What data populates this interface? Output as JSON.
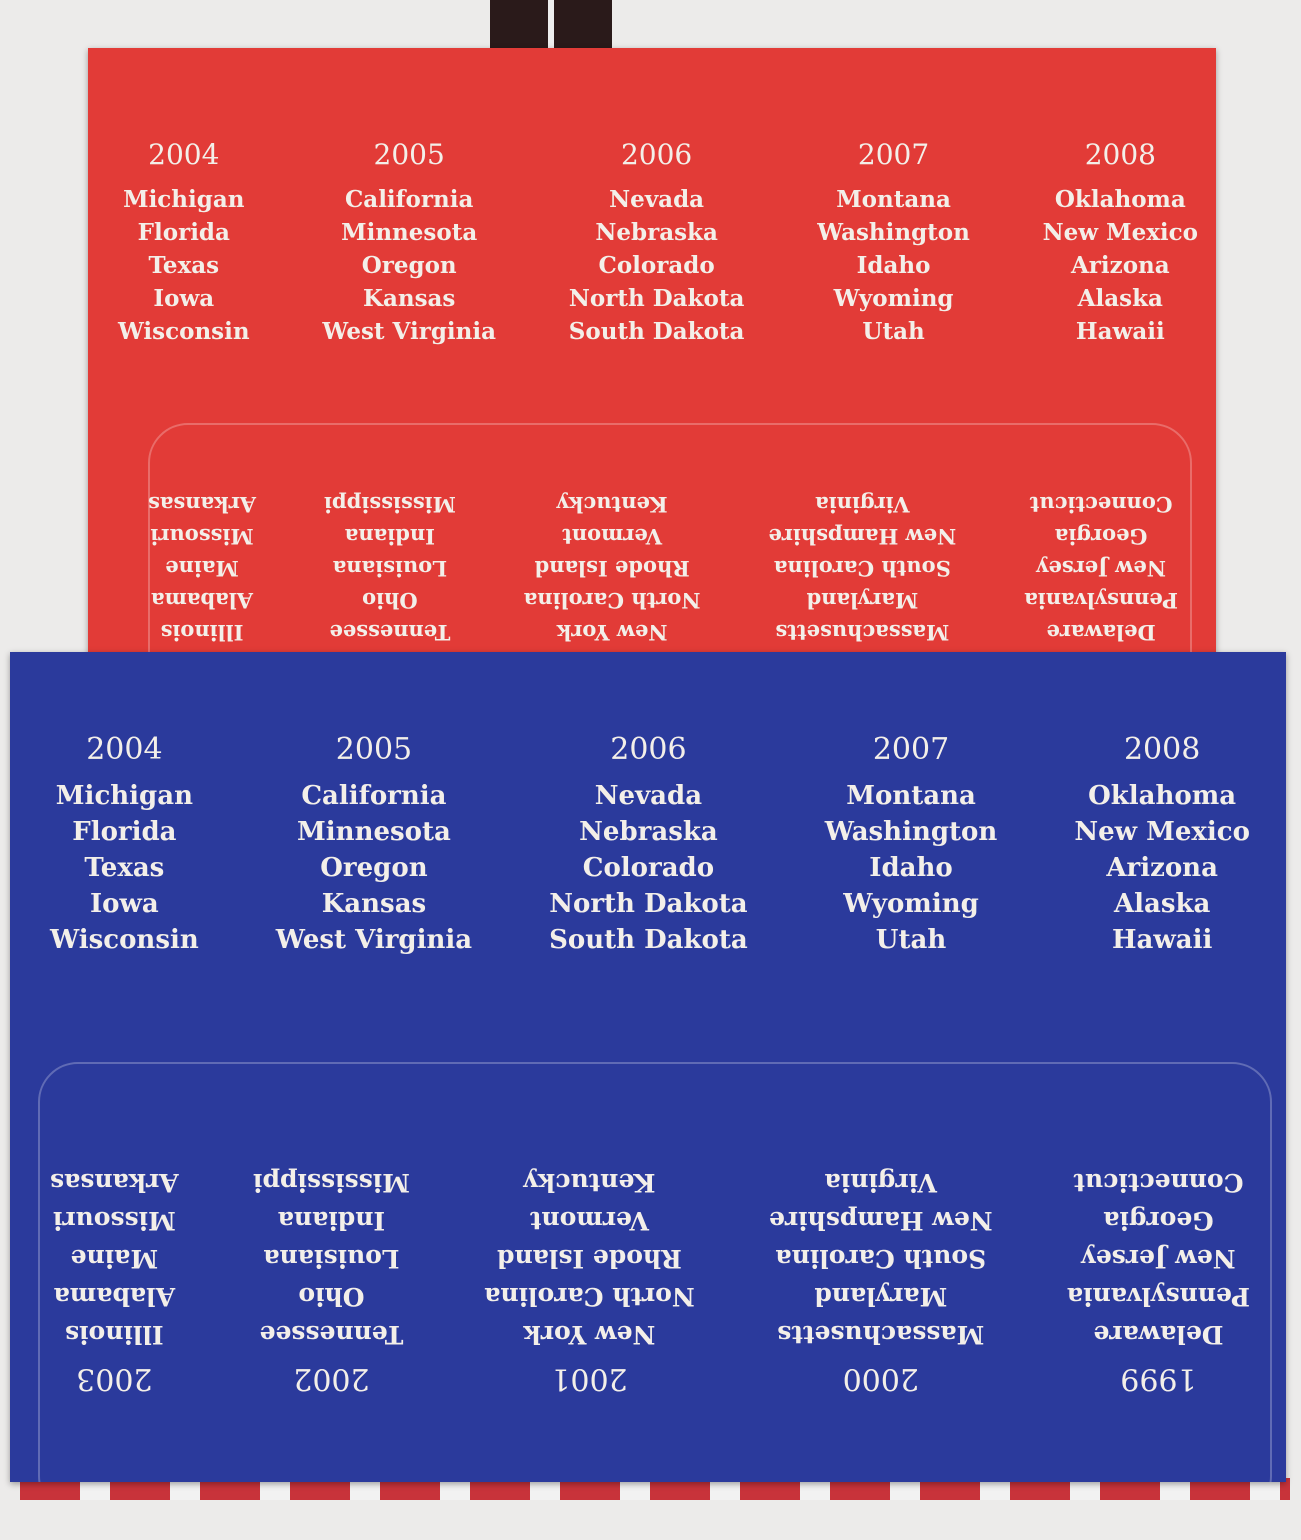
{
  "red_card": {
    "color": "#e23b37",
    "top": [
      {
        "year": "2004",
        "states": [
          "Michigan",
          "Florida",
          "Texas",
          "Iowa",
          "Wisconsin"
        ]
      },
      {
        "year": "2005",
        "states": [
          "California",
          "Minnesota",
          "Oregon",
          "Kansas",
          "West Virginia"
        ]
      },
      {
        "year": "2006",
        "states": [
          "Nevada",
          "Nebraska",
          "Colorado",
          "North Dakota",
          "South Dakota"
        ]
      },
      {
        "year": "2007",
        "states": [
          "Montana",
          "Washington",
          "Idaho",
          "Wyoming",
          "Utah"
        ]
      },
      {
        "year": "2008",
        "states": [
          "Oklahoma",
          "New Mexico",
          "Arizona",
          "Alaska",
          "Hawaii"
        ]
      }
    ],
    "flap": [
      {
        "states": [
          "Delaware",
          "Pennsylvania",
          "New Jersey",
          "Georgia",
          "Connecticut"
        ]
      },
      {
        "states": [
          "Massachusetts",
          "Maryland",
          "South Carolina",
          "New Hampshire",
          "Virginia"
        ]
      },
      {
        "states": [
          "New York",
          "North Carolina",
          "Rhode Island",
          "Vermont",
          "Kentucky"
        ]
      },
      {
        "states": [
          "Tennessee",
          "Ohio",
          "Louisiana",
          "Indiana",
          "Mississippi"
        ]
      },
      {
        "states": [
          "Illinois",
          "Alabama",
          "Maine",
          "Missouri",
          "Arkansas"
        ]
      }
    ]
  },
  "blue_card": {
    "color": "#2b3a9c",
    "top": [
      {
        "year": "2004",
        "states": [
          "Michigan",
          "Florida",
          "Texas",
          "Iowa",
          "Wisconsin"
        ]
      },
      {
        "year": "2005",
        "states": [
          "California",
          "Minnesota",
          "Oregon",
          "Kansas",
          "West Virginia"
        ]
      },
      {
        "year": "2006",
        "states": [
          "Nevada",
          "Nebraska",
          "Colorado",
          "North Dakota",
          "South Dakota"
        ]
      },
      {
        "year": "2007",
        "states": [
          "Montana",
          "Washington",
          "Idaho",
          "Wyoming",
          "Utah"
        ]
      },
      {
        "year": "2008",
        "states": [
          "Oklahoma",
          "New Mexico",
          "Arizona",
          "Alaska",
          "Hawaii"
        ]
      }
    ],
    "flap": [
      {
        "year": "1999",
        "states": [
          "Delaware",
          "Pennsylvania",
          "New Jersey",
          "Georgia",
          "Connecticut"
        ]
      },
      {
        "year": "2000",
        "states": [
          "Massachusetts",
          "Maryland",
          "South Carolina",
          "New Hampshire",
          "Virginia"
        ]
      },
      {
        "year": "2001",
        "states": [
          "New York",
          "North Carolina",
          "Rhode Island",
          "Vermont",
          "Kentucky"
        ]
      },
      {
        "year": "2002",
        "states": [
          "Tennessee",
          "Ohio",
          "Louisiana",
          "Indiana",
          "Mississippi"
        ]
      },
      {
        "year": "2003",
        "states": [
          "Illinois",
          "Alabama",
          "Maine",
          "Missouri",
          "Arkansas"
        ]
      }
    ]
  }
}
